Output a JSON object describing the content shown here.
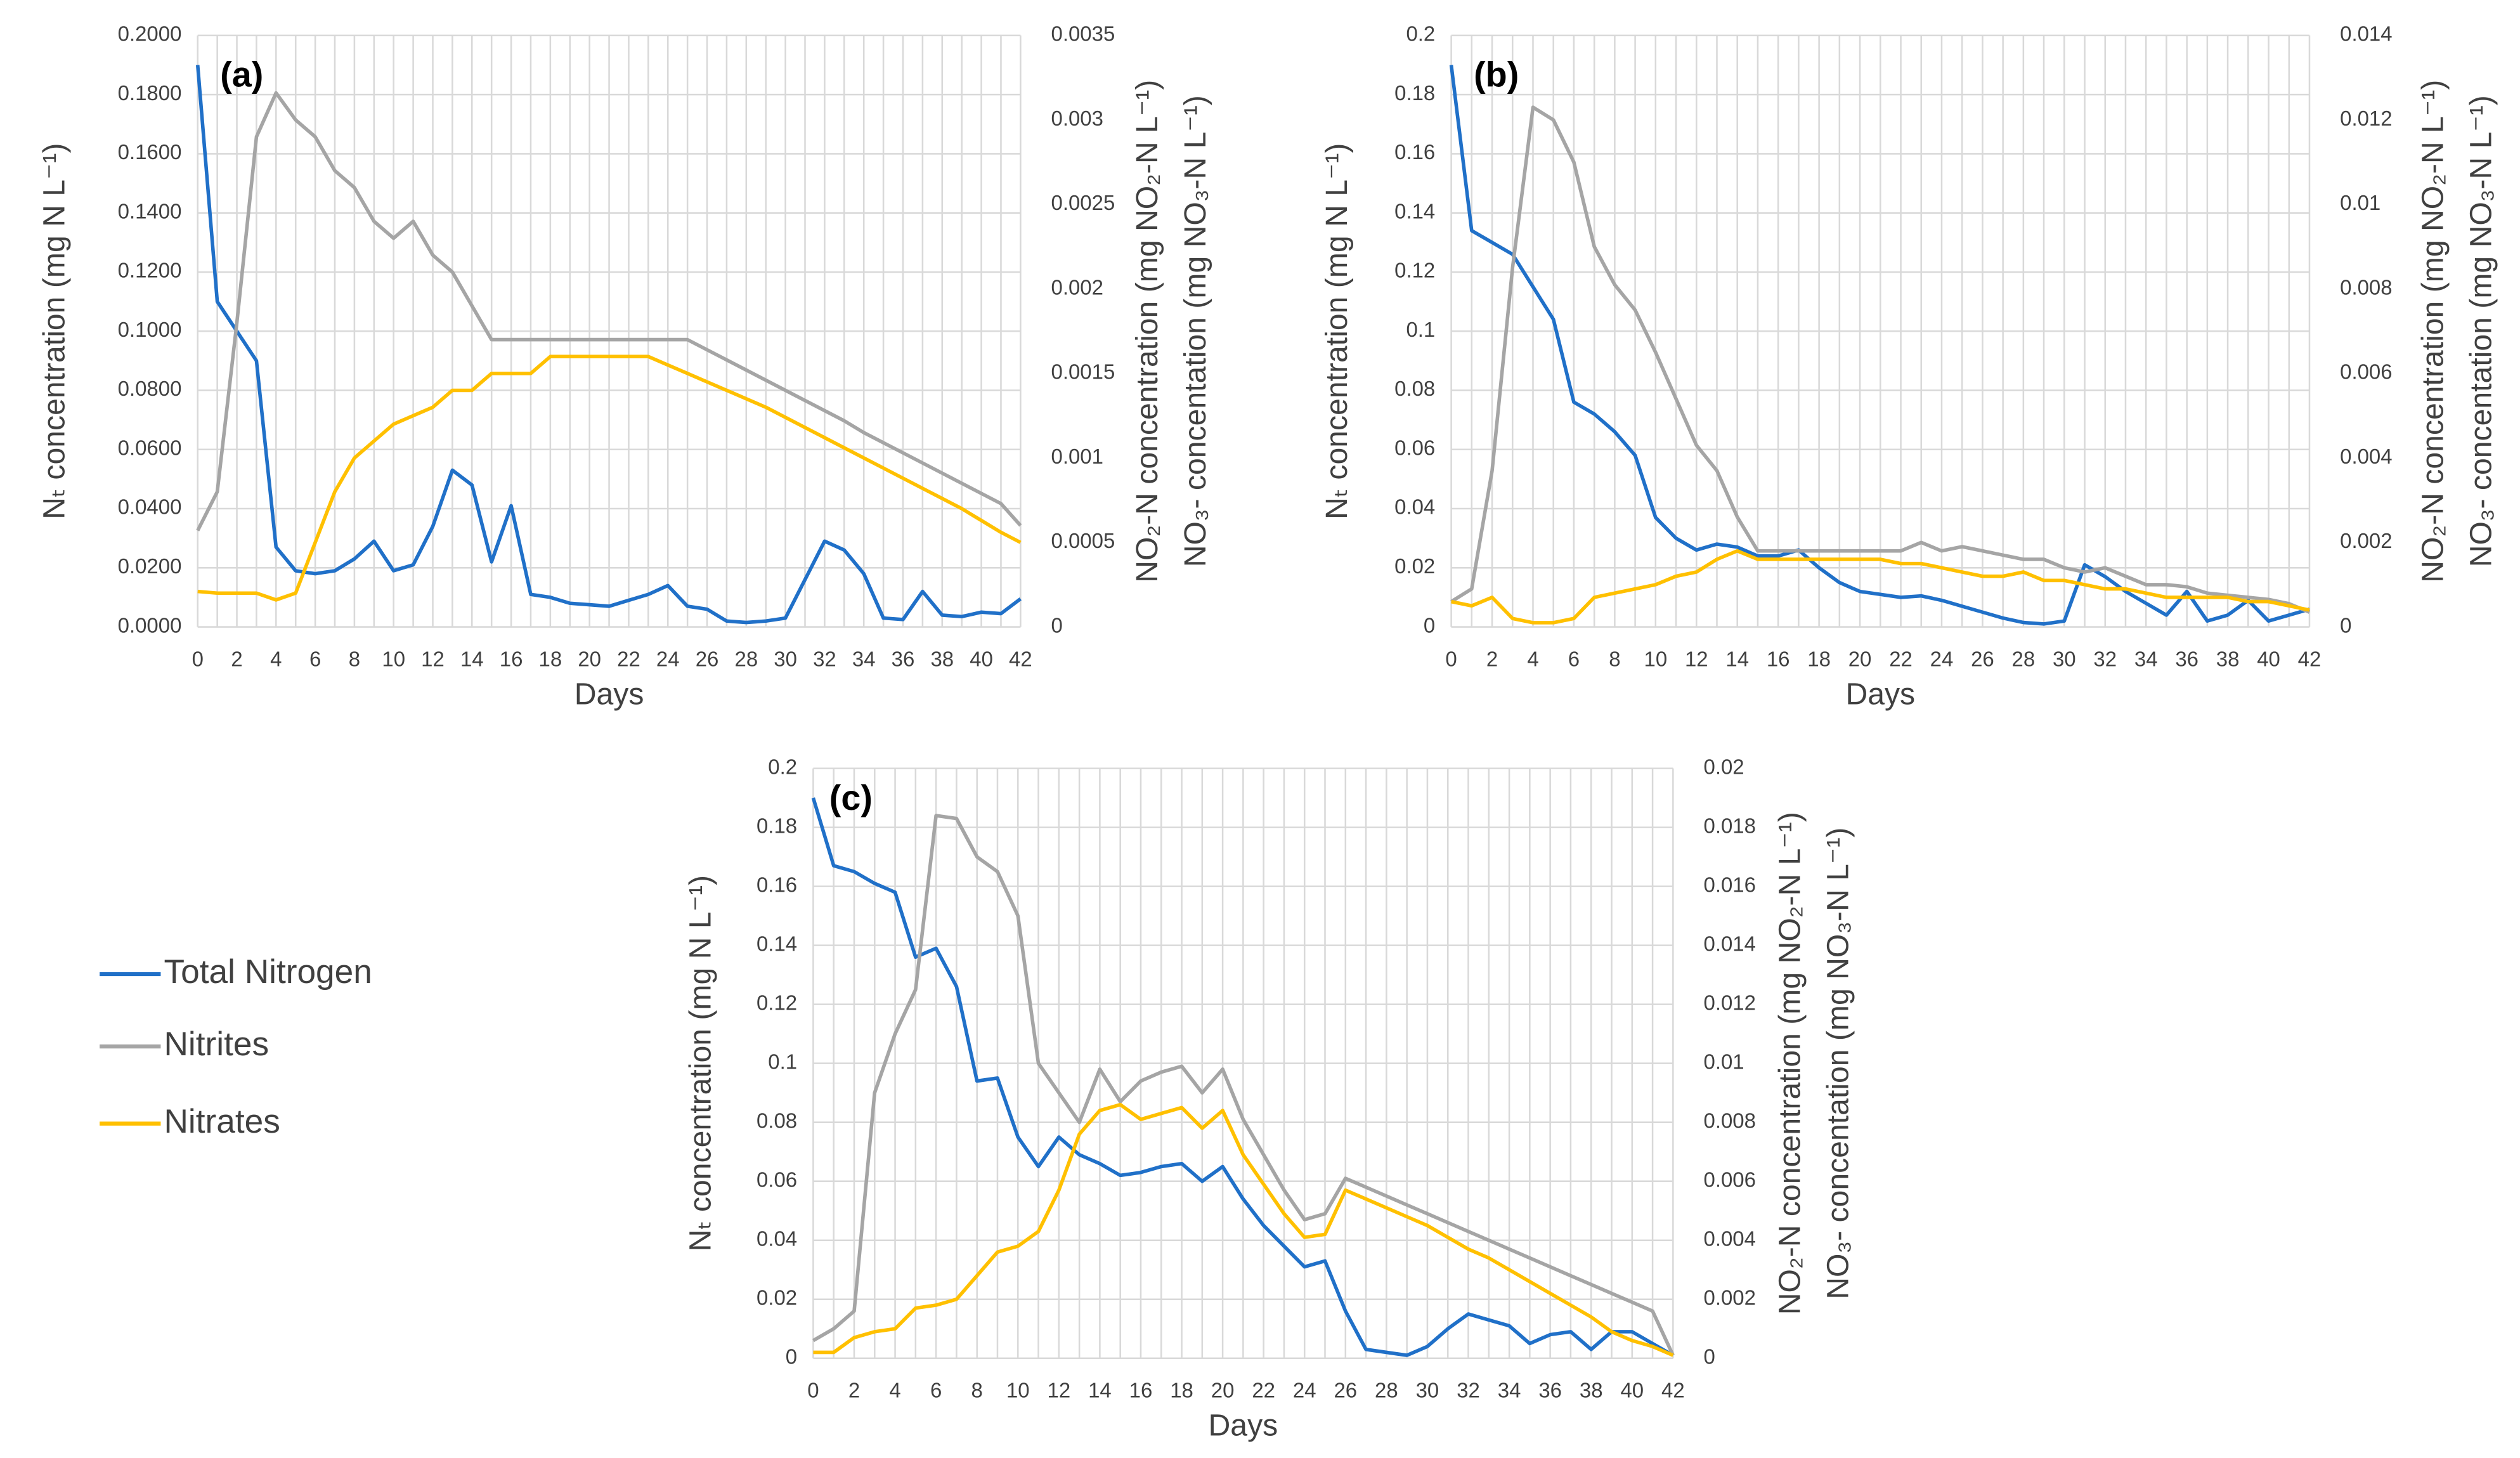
{
  "chart_data": [
    {
      "type": "line",
      "title": "(a)",
      "xlabel": "Days",
      "ylabel": "Nₜ concentration (mg N L⁻¹)",
      "y2label": [
        "NO₂-N concentration (mg NO₂-N L⁻¹)",
        "NO₃- concentation (mg NO₃-N L⁻¹)"
      ],
      "x": [
        0,
        1,
        2,
        3,
        4,
        5,
        6,
        7,
        8,
        9,
        10,
        11,
        12,
        13,
        14,
        15,
        16,
        17,
        18,
        19,
        20,
        21,
        22,
        23,
        24,
        25,
        26,
        27,
        28,
        29,
        30,
        31,
        32,
        33,
        34,
        35,
        36,
        37,
        38,
        39,
        40,
        41,
        42
      ],
      "xlim": [
        0,
        42
      ],
      "xticks": [
        0,
        2,
        4,
        6,
        8,
        10,
        12,
        14,
        16,
        18,
        20,
        22,
        24,
        26,
        28,
        30,
        32,
        34,
        36,
        38,
        40,
        42
      ],
      "ylim": [
        0,
        0.2
      ],
      "yticks": [
        {
          "value": 0,
          "label": "0.0000"
        },
        {
          "value": 0.02,
          "label": "0.0200"
        },
        {
          "value": 0.04,
          "label": "0.0400"
        },
        {
          "value": 0.06,
          "label": "0.0600"
        },
        {
          "value": 0.08,
          "label": "0.0800"
        },
        {
          "value": 0.1,
          "label": "0.1000"
        },
        {
          "value": 0.12,
          "label": "0.1200"
        },
        {
          "value": 0.14,
          "label": "0.1400"
        },
        {
          "value": 0.16,
          "label": "0.1600"
        },
        {
          "value": 0.18,
          "label": "0.1800"
        },
        {
          "value": 0.2,
          "label": "0.2000"
        }
      ],
      "y2lim": [
        0,
        0.0035
      ],
      "y2ticks": [
        0,
        0.0005,
        0.001,
        0.0015,
        0.002,
        0.0025,
        0.003,
        0.0035
      ],
      "grid": true,
      "series": [
        {
          "name": "Total Nitrogen",
          "color": "#2070c8",
          "values": [
            0.19,
            0.11,
            0.1,
            0.09,
            0.027,
            0.019,
            0.018,
            0.019,
            0.023,
            0.029,
            0.019,
            0.021,
            0.034,
            0.053,
            0.048,
            0.022,
            0.041,
            0.011,
            0.01,
            0.008,
            0.0075,
            0.007,
            0.009,
            0.011,
            0.014,
            0.007,
            0.006,
            0.002,
            0.0015,
            0.002,
            0.003,
            0.016,
            0.029,
            0.026,
            0.018,
            0.003,
            0.0025,
            0.012,
            0.004,
            0.0035,
            0.005,
            0.0045,
            0.0095
          ]
        },
        {
          "name": "Nitrites",
          "color": "#a5a5a5",
          "axis": "y2",
          "values": [
            0.00057,
            0.0008,
            0.0018,
            0.0029,
            0.00316,
            0.003,
            0.0029,
            0.0027,
            0.0026,
            0.0024,
            0.0023,
            0.0024,
            0.0022,
            0.0021,
            0.0019,
            0.0017,
            0.0017,
            0.0017,
            0.0017,
            0.0017,
            0.0017,
            0.0017,
            0.0017,
            0.0017,
            0.0017,
            0.0017,
            0.00164,
            0.00158,
            0.00152,
            0.00146,
            0.0014,
            0.00134,
            0.00128,
            0.00122,
            0.00115,
            0.00109,
            0.00103,
            0.00097,
            0.00091,
            0.00085,
            0.00079,
            0.00073,
            0.0006
          ]
        },
        {
          "name": "Nitrates",
          "color": "#ffc000",
          "axis": "y2",
          "values": [
            0.00021,
            0.0002,
            0.0002,
            0.0002,
            0.00016,
            0.0002,
            0.0005,
            0.0008,
            0.001,
            0.0011,
            0.0012,
            0.00125,
            0.0013,
            0.0014,
            0.0014,
            0.0015,
            0.0015,
            0.0015,
            0.0016,
            0.0016,
            0.0016,
            0.0016,
            0.0016,
            0.0016,
            0.00155,
            0.0015,
            0.00145,
            0.0014,
            0.00135,
            0.0013,
            0.00124,
            0.00118,
            0.00112,
            0.00106,
            0.001,
            0.00094,
            0.00088,
            0.00082,
            0.00076,
            0.0007,
            0.00063,
            0.00056,
            0.0005
          ]
        }
      ]
    },
    {
      "type": "line",
      "title": "(b)",
      "xlabel": "Days",
      "ylabel": "Nₜ concentration (mg N L⁻¹)",
      "y2label": [
        "NO₂-N concentration (mg NO₂-N L⁻¹)",
        "NO₃- concentation (mg NO₃-N L⁻¹)"
      ],
      "x": [
        0,
        1,
        2,
        3,
        4,
        5,
        6,
        7,
        8,
        9,
        10,
        11,
        12,
        13,
        14,
        15,
        16,
        17,
        18,
        19,
        20,
        21,
        22,
        23,
        24,
        25,
        26,
        27,
        28,
        29,
        30,
        31,
        32,
        33,
        34,
        35,
        36,
        37,
        38,
        39,
        40,
        41,
        42
      ],
      "xlim": [
        0,
        42
      ],
      "xticks": [
        0,
        2,
        4,
        6,
        8,
        10,
        12,
        14,
        16,
        18,
        20,
        22,
        24,
        26,
        28,
        30,
        32,
        34,
        36,
        38,
        40,
        42
      ],
      "ylim": [
        0,
        0.2
      ],
      "yticks": [
        0,
        0.02,
        0.04,
        0.06,
        0.08,
        0.1,
        0.12,
        0.14,
        0.16,
        0.18,
        0.2
      ],
      "y2lim": [
        0,
        0.014
      ],
      "y2ticks": [
        0,
        0.002,
        0.004,
        0.006,
        0.008,
        0.01,
        0.012,
        0.014
      ],
      "grid": true,
      "series": [
        {
          "color": "#2070c8",
          "values": [
            0.19,
            0.134,
            0.13,
            0.126,
            0.115,
            0.104,
            0.076,
            0.072,
            0.066,
            0.058,
            0.037,
            0.03,
            0.026,
            0.028,
            0.027,
            0.024,
            0.024,
            0.026,
            0.02,
            0.015,
            0.012,
            0.011,
            0.01,
            0.0105,
            0.009,
            0.007,
            0.005,
            0.003,
            0.0015,
            0.001,
            0.002,
            0.021,
            0.017,
            0.012,
            0.008,
            0.004,
            0.012,
            0.002,
            0.004,
            0.009,
            0.002,
            0.004,
            0.006
          ]
        },
        {
          "color": "#a5a5a5",
          "axis": "y2",
          "values": [
            0.0006,
            0.0009,
            0.0037,
            0.0085,
            0.0123,
            0.012,
            0.011,
            0.009,
            0.0081,
            0.0075,
            0.0065,
            0.0054,
            0.0043,
            0.0037,
            0.0026,
            0.0018,
            0.0018,
            0.0018,
            0.0018,
            0.0018,
            0.0018,
            0.0018,
            0.0018,
            0.002,
            0.0018,
            0.0019,
            0.0018,
            0.0017,
            0.0016,
            0.0016,
            0.0014,
            0.0013,
            0.0014,
            0.0012,
            0.001,
            0.001,
            0.00095,
            0.0008,
            0.00075,
            0.0007,
            0.00065,
            0.00055,
            0.00035
          ]
        },
        {
          "color": "#ffc000",
          "axis": "y2",
          "values": [
            0.0006,
            0.0005,
            0.0007,
            0.0002,
            0.0001,
            0.0001,
            0.0002,
            0.0007,
            0.0008,
            0.0009,
            0.001,
            0.0012,
            0.0013,
            0.0016,
            0.0018,
            0.0016,
            0.0016,
            0.0016,
            0.0016,
            0.0016,
            0.0016,
            0.0016,
            0.0015,
            0.0015,
            0.0014,
            0.0013,
            0.0012,
            0.0012,
            0.0013,
            0.0011,
            0.0011,
            0.001,
            0.0009,
            0.0009,
            0.0008,
            0.0007,
            0.0007,
            0.0007,
            0.0007,
            0.0006,
            0.0006,
            0.0005,
            0.0004
          ]
        }
      ]
    },
    {
      "type": "line",
      "title": "(c)",
      "xlabel": "Days",
      "ylabel": "Nₜ concentration (mg N L⁻¹)",
      "y2label": [
        "NO₂-N concentration (mg NO₂-N L⁻¹)",
        "NO₃- concentation (mg NO₃-N L⁻¹)"
      ],
      "x": [
        0,
        1,
        2,
        3,
        4,
        5,
        6,
        7,
        8,
        9,
        10,
        11,
        12,
        13,
        14,
        15,
        16,
        17,
        18,
        19,
        20,
        21,
        22,
        23,
        24,
        25,
        26,
        27,
        28,
        29,
        30,
        31,
        32,
        33,
        34,
        35,
        36,
        37,
        38,
        39,
        40,
        41,
        42
      ],
      "xlim": [
        0,
        42
      ],
      "xticks": [
        0,
        2,
        4,
        6,
        8,
        10,
        12,
        14,
        16,
        18,
        20,
        22,
        24,
        26,
        28,
        30,
        32,
        34,
        36,
        38,
        40,
        42
      ],
      "ylim": [
        0,
        0.2
      ],
      "yticks": [
        0,
        0.02,
        0.04,
        0.06,
        0.08,
        0.1,
        0.12,
        0.14,
        0.16,
        0.18,
        0.2
      ],
      "y2lim": [
        0,
        0.02
      ],
      "y2ticks": [
        0,
        0.002,
        0.004,
        0.006,
        0.008,
        0.01,
        0.012,
        0.014,
        0.016,
        0.018,
        0.02
      ],
      "grid": true,
      "series": [
        {
          "color": "#2070c8",
          "values": [
            0.19,
            0.167,
            0.165,
            0.161,
            0.158,
            0.136,
            0.139,
            0.126,
            0.094,
            0.095,
            0.075,
            0.065,
            0.075,
            0.069,
            0.066,
            0.062,
            0.063,
            0.065,
            0.066,
            0.06,
            0.065,
            0.054,
            0.045,
            0.038,
            0.031,
            0.033,
            0.016,
            0.003,
            0.002,
            0.001,
            0.004,
            0.01,
            0.015,
            0.013,
            0.011,
            0.005,
            0.008,
            0.009,
            0.003,
            0.009,
            0.009,
            0.005,
            0.001
          ]
        },
        {
          "color": "#a5a5a5",
          "axis": "y2",
          "values": [
            0.0006,
            0.001,
            0.0016,
            0.009,
            0.011,
            0.0125,
            0.0184,
            0.0183,
            0.017,
            0.0165,
            0.015,
            0.01,
            0.009,
            0.008,
            0.0098,
            0.0087,
            0.0094,
            0.0097,
            0.0099,
            0.009,
            0.0098,
            0.0081,
            0.0069,
            0.0057,
            0.0047,
            0.0049,
            0.0061,
            0.0058,
            0.0055,
            0.0052,
            0.0049,
            0.0046,
            0.0043,
            0.004,
            0.0037,
            0.0034,
            0.0031,
            0.0028,
            0.0025,
            0.0022,
            0.0019,
            0.0016,
            0.0001
          ]
        },
        {
          "color": "#ffc000",
          "axis": "y2",
          "values": [
            0.0002,
            0.0002,
            0.0007,
            0.0009,
            0.001,
            0.0017,
            0.0018,
            0.002,
            0.0028,
            0.0036,
            0.0038,
            0.0043,
            0.0057,
            0.0076,
            0.0084,
            0.0086,
            0.0081,
            0.0083,
            0.0085,
            0.0078,
            0.0084,
            0.0069,
            0.0059,
            0.0049,
            0.0041,
            0.0042,
            0.0057,
            0.0054,
            0.0051,
            0.0048,
            0.0045,
            0.0041,
            0.0037,
            0.0034,
            0.003,
            0.0026,
            0.0022,
            0.0018,
            0.0014,
            0.0009,
            0.0006,
            0.0004,
            0.0001
          ]
        }
      ]
    }
  ]
}
